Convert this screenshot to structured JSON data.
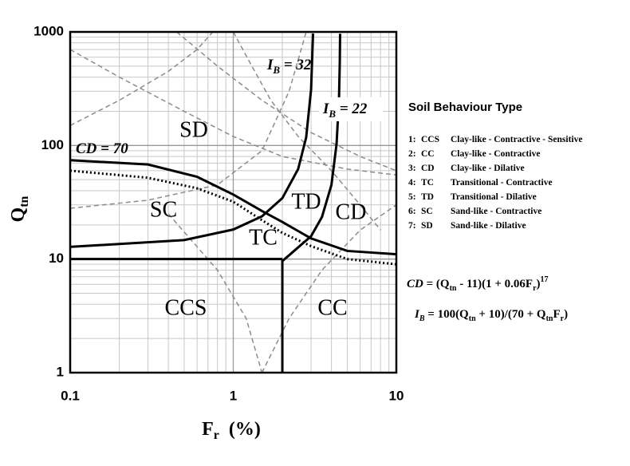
{
  "chart_data": {
    "type": "line",
    "xscale": "log",
    "yscale": "log",
    "xlim": [
      0.1,
      10
    ],
    "ylim": [
      1,
      1000
    ],
    "xticks": [
      0.1,
      1,
      10
    ],
    "yticks": [
      1,
      10,
      100,
      1000
    ],
    "x_minor_grid": [
      0.2,
      0.3,
      0.4,
      0.5,
      0.6,
      0.7,
      0.8,
      0.9,
      2,
      3,
      4,
      5,
      6,
      7,
      8,
      9
    ],
    "y_minor_grid": [
      2,
      3,
      4,
      5,
      6,
      7,
      8,
      9,
      20,
      30,
      40,
      50,
      60,
      70,
      80,
      90,
      200,
      300,
      400,
      500,
      600,
      700,
      800,
      900
    ],
    "grid": true,
    "x_label": [
      "F",
      "r",
      "(%)"
    ],
    "y_label": [
      "Q",
      "tn"
    ],
    "series": [
      {
        "style": "dashed",
        "color": "#8c8c8c",
        "x": [
          0.1,
          0.2,
          0.4,
          0.6,
          0.75
        ],
        "values": [
          150,
          250,
          450,
          700,
          1000
        ]
      },
      {
        "style": "dashed",
        "color": "#8c8c8c",
        "x": [
          0.1,
          0.3,
          0.8,
          1.5,
          2.2,
          2.8
        ],
        "values": [
          28,
          33,
          45,
          90,
          300,
          1000
        ]
      },
      {
        "style": "dashed",
        "color": "#8c8c8c",
        "x": [
          0.1,
          0.2,
          0.5,
          1,
          2,
          5,
          10
        ],
        "values": [
          700,
          400,
          200,
          120,
          80,
          62,
          55
        ]
      },
      {
        "style": "dashed",
        "color": "#8c8c8c",
        "x": [
          0.45,
          0.8,
          1.5,
          3,
          6,
          10
        ],
        "values": [
          1000,
          500,
          250,
          130,
          80,
          60
        ]
      },
      {
        "style": "dashed",
        "color": "#8c8c8c",
        "x": [
          1,
          1.3,
          1.7,
          2.5,
          4,
          6,
          8
        ],
        "values": [
          1000,
          500,
          250,
          120,
          60,
          30,
          18
        ]
      },
      {
        "style": "dashed",
        "color": "#8c8c8c",
        "x": [
          0.4,
          0.8,
          1.2,
          1.5
        ],
        "values": [
          25,
          8,
          3,
          1
        ]
      },
      {
        "style": "dashed",
        "color": "#8c8c8c",
        "x": [
          1.5,
          2.2,
          3.5,
          6,
          10
        ],
        "values": [
          1,
          3,
          8,
          18,
          30
        ]
      },
      {
        "style": "dotted",
        "color": "#000000",
        "x": [
          0.1,
          0.3,
          0.6,
          1,
          1.5,
          2,
          3,
          5,
          10
        ],
        "values": [
          60,
          52,
          42,
          32,
          22,
          17,
          13,
          10,
          9
        ]
      },
      {
        "style": "solid",
        "color": "#000000",
        "x": [
          0.1,
          0.3,
          0.6,
          1,
          1.5,
          2,
          3,
          5,
          10
        ],
        "values": [
          74.2,
          68,
          53,
          37,
          26.5,
          21.2,
          15.2,
          11.8,
          11.02
        ]
      },
      {
        "style": "solid",
        "color": "#000000",
        "x": [
          0.1,
          0.5,
          1,
          1.5,
          2,
          2.5,
          2.8,
          3,
          3.085
        ],
        "values": [
          12.8,
          14.7,
          18.2,
          23.8,
          34.4,
          62,
          118,
          310,
          969
        ]
      },
      {
        "style": "solid",
        "color": "#000000",
        "x": [
          2,
          3,
          3.5,
          4,
          4.3,
          4.45,
          4.5,
          4.52
        ],
        "values": [
          9.6,
          15.9,
          23.5,
          45,
          103,
          257,
          540,
          964
        ]
      },
      {
        "style": "solid",
        "color": "#000000",
        "x": [
          0.1,
          2
        ],
        "values": [
          10,
          10
        ]
      },
      {
        "style": "solid",
        "color": "#000000",
        "x": [
          2,
          2
        ],
        "values": [
          1,
          10
        ]
      }
    ],
    "regions": [
      "SD",
      "SC",
      "TC",
      "TD",
      "CD",
      "CCS",
      "CC"
    ],
    "annotations": {
      "cd": "CD = 70",
      "ib32": [
        "I",
        "B",
        " = 32"
      ],
      "ib22": [
        "I",
        "B",
        " = 22"
      ]
    },
    "legend_title": "Soil Behaviour Type",
    "legend_rows": [
      [
        "1:",
        "CCS",
        "Clay-like - Contractive - Sensitive"
      ],
      [
        "2:",
        "CC",
        "Clay-like - Contractive"
      ],
      [
        "3:",
        "CD",
        "Clay-like - Dilative"
      ],
      [
        "4:",
        "TC",
        "Transitional - Contractive"
      ],
      [
        "5:",
        "TD",
        "Transitional - Dilative"
      ],
      [
        "6:",
        "SC",
        "Sand-like - Contractive"
      ],
      [
        "7:",
        "SD",
        "Sand-like - Dilative"
      ]
    ],
    "equations": [
      [
        "CD",
        " = (Q",
        "tn",
        " - 11)(1 + 0.06F",
        "r",
        ")",
        "17"
      ],
      [
        "I",
        "B",
        " = 100(Q",
        "tn",
        " + 10)/(70 + Q",
        "tn",
        "F",
        "r",
        ")"
      ]
    ]
  }
}
